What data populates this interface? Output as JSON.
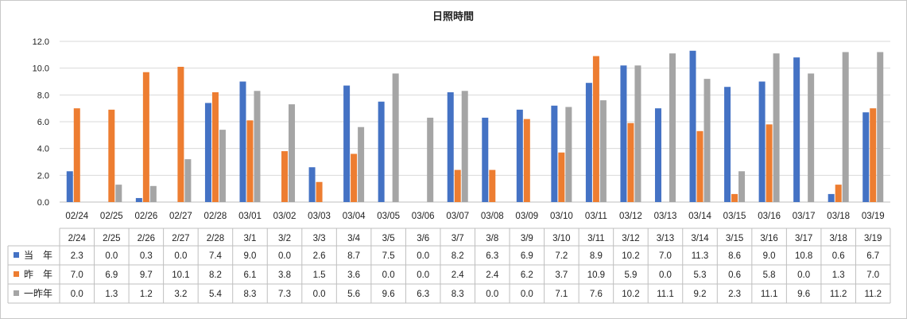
{
  "chart_data": {
    "type": "bar",
    "title": "日照時間",
    "x_axis_labels": [
      "02/24",
      "02/25",
      "02/26",
      "02/27",
      "02/28",
      "03/01",
      "03/02",
      "03/03",
      "03/04",
      "03/05",
      "03/06",
      "03/07",
      "03/08",
      "03/09",
      "03/10",
      "03/11",
      "03/12",
      "03/13",
      "03/14",
      "03/15",
      "03/16",
      "03/17",
      "03/18",
      "03/19"
    ],
    "categories": [
      "2/24",
      "2/25",
      "2/26",
      "2/27",
      "2/28",
      "3/1",
      "3/2",
      "3/3",
      "3/4",
      "3/5",
      "3/6",
      "3/7",
      "3/8",
      "3/9",
      "3/10",
      "3/11",
      "3/12",
      "3/13",
      "3/14",
      "3/15",
      "3/16",
      "3/17",
      "3/18",
      "3/19"
    ],
    "series": [
      {
        "name": "当　年",
        "color": "#4472C4",
        "values": [
          2.3,
          0.0,
          0.3,
          0.0,
          7.4,
          9.0,
          0.0,
          2.6,
          8.7,
          7.5,
          0.0,
          8.2,
          6.3,
          6.9,
          7.2,
          8.9,
          10.2,
          7.0,
          11.3,
          8.6,
          9.0,
          10.8,
          0.6,
          6.7
        ]
      },
      {
        "name": "昨　年",
        "color": "#ED7D31",
        "values": [
          7.0,
          6.9,
          9.7,
          10.1,
          8.2,
          6.1,
          3.8,
          1.5,
          3.6,
          0.0,
          0.0,
          2.4,
          2.4,
          6.2,
          3.7,
          10.9,
          5.9,
          0.0,
          5.3,
          0.6,
          5.8,
          0.0,
          1.3,
          7.0
        ]
      },
      {
        "name": "一昨年",
        "color": "#A5A5A5",
        "values": [
          0.0,
          1.3,
          1.2,
          3.2,
          5.4,
          8.3,
          7.3,
          0.0,
          5.6,
          9.6,
          6.3,
          8.3,
          0.0,
          0.0,
          7.1,
          7.6,
          10.2,
          11.1,
          9.2,
          2.3,
          11.1,
          9.6,
          11.2,
          11.2
        ]
      }
    ],
    "ylim": [
      0,
      12
    ],
    "y_ticks": [
      "0.0",
      "2.0",
      "4.0",
      "6.0",
      "8.0",
      "10.0",
      "12.0"
    ],
    "grid": true,
    "data_table": true,
    "legend": "data-table-keys"
  }
}
